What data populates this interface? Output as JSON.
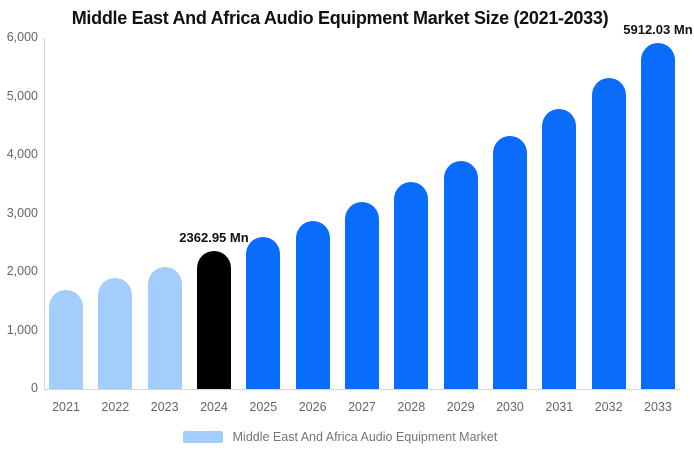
{
  "title": "Middle East And Africa Audio Equipment Market Size (2021-2033)",
  "legend": {
    "label": "Middle East And Africa Audio Equipment Market",
    "swatch_color": "#a3cdfa"
  },
  "colors": {
    "historical_bar": "#a3cdfa",
    "base_year_bar": "#000000",
    "forecast_bar": "#0a6cfa",
    "axis_line": "#d6d6d6",
    "axis_text": "#666666",
    "legend_text": "#757575"
  },
  "chart_data": {
    "type": "bar",
    "title": "Middle East And Africa Audio Equipment Market Size (2021-2033)",
    "xlabel": "",
    "ylabel": "",
    "unit": "Mn",
    "ylim": [
      0,
      6000
    ],
    "ytick_labels": [
      "0",
      "1,000",
      "2,000",
      "3,000",
      "4,000",
      "5,000",
      "6,000"
    ],
    "ytick_values": [
      0,
      1000,
      2000,
      3000,
      4000,
      5000,
      6000
    ],
    "grid": false,
    "legend_position": "bottom",
    "categories": [
      "2021",
      "2022",
      "2023",
      "2024",
      "2025",
      "2026",
      "2027",
      "2028",
      "2029",
      "2030",
      "2031",
      "2032",
      "2033"
    ],
    "values": [
      1700,
      1890,
      2090,
      2362.95,
      2600,
      2880,
      3190,
      3540,
      3890,
      4320,
      4780,
      5320,
      5912.03
    ],
    "bar_roles": [
      "historical",
      "historical",
      "historical",
      "base_year",
      "forecast",
      "forecast",
      "forecast",
      "forecast",
      "forecast",
      "forecast",
      "forecast",
      "forecast",
      "forecast"
    ],
    "data_labels": [
      {
        "category": "2024",
        "text": "2362.95 Mn"
      },
      {
        "category": "2033",
        "text": "5912.03 Mn"
      }
    ],
    "series_name": "Middle East And Africa Audio Equipment Market"
  }
}
